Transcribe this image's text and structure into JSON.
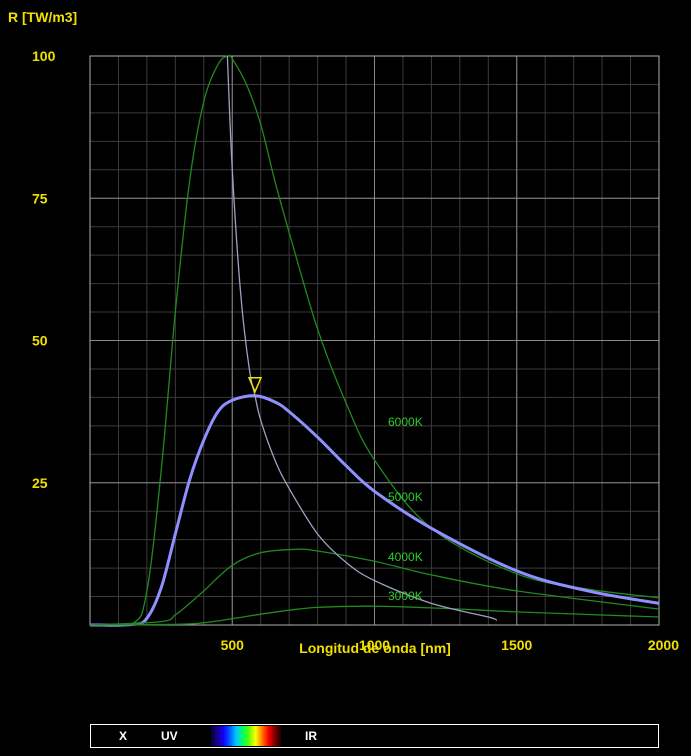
{
  "chart_data": {
    "type": "line",
    "ylabel": "R [TW/m3]",
    "xlabel": "Longitud de onda [nm]",
    "xlim": [
      0,
      2000
    ],
    "ylim": [
      0,
      100
    ],
    "x_ticks": [
      "500",
      "1000",
      "1500",
      "2000"
    ],
    "y_ticks": [
      "25",
      "50",
      "75",
      "100"
    ],
    "grid": true,
    "series": [
      {
        "name": "6000K",
        "color": "#1f8a1f",
        "x": [
          0,
          150,
          200,
          250,
          300,
          350,
          400,
          450,
          483,
          500,
          550,
          600,
          650,
          700,
          800,
          900,
          1000,
          1200,
          1500,
          1750,
          2000
        ],
        "y": [
          0,
          0.3,
          6,
          27,
          55,
          78,
          92,
          98.5,
          100,
          99.5,
          95,
          88,
          78,
          69,
          52,
          39,
          29,
          17,
          9,
          6.3,
          4.8
        ]
      },
      {
        "name": "5000K",
        "color": "#8f8fff",
        "x": [
          0,
          150,
          200,
          250,
          300,
          350,
          400,
          450,
          500,
          580,
          650,
          700,
          800,
          900,
          1000,
          1200,
          1500,
          1750,
          2000
        ],
        "y": [
          0,
          0.1,
          1.2,
          6.5,
          16,
          25.5,
          32.5,
          37.5,
          39.5,
          40.3,
          39.2,
          37.5,
          33,
          28,
          23.5,
          17,
          9.5,
          6,
          3.8
        ]
      },
      {
        "name": "4000K",
        "color": "#1f8a1f",
        "x": [
          0,
          250,
          300,
          350,
          400,
          500,
          600,
          725,
          800,
          1000,
          1200,
          1500,
          2000
        ],
        "y": [
          0,
          0.6,
          1.8,
          3.8,
          6,
          10.5,
          12.7,
          13.3,
          13,
          11.2,
          8.8,
          6,
          2.8
        ]
      },
      {
        "name": "3000K",
        "color": "#1f8a1f",
        "x": [
          0,
          300,
          400,
          500,
          600,
          700,
          800,
          966,
          1100,
          1300,
          1500,
          2000
        ],
        "y": [
          0,
          0.1,
          0.4,
          1.1,
          1.9,
          2.6,
          3.1,
          3.3,
          3.2,
          2.8,
          2.3,
          1.4
        ]
      },
      {
        "name": "",
        "color": "#a0a0c0",
        "x": [
          483,
          500,
          530,
          560,
          580,
          600,
          650,
          700,
          800,
          900,
          1000,
          1200,
          1400,
          1430
        ],
        "y": [
          100,
          80,
          58,
          45,
          40.3,
          36,
          29,
          24,
          16,
          11,
          7.8,
          3.8,
          1.4,
          0.8
        ]
      }
    ],
    "marker": {
      "x": 580,
      "y": 40.3,
      "shape": "triangle-down"
    }
  },
  "spectrum_bar": {
    "labels": [
      "X",
      "UV",
      "IR"
    ]
  }
}
